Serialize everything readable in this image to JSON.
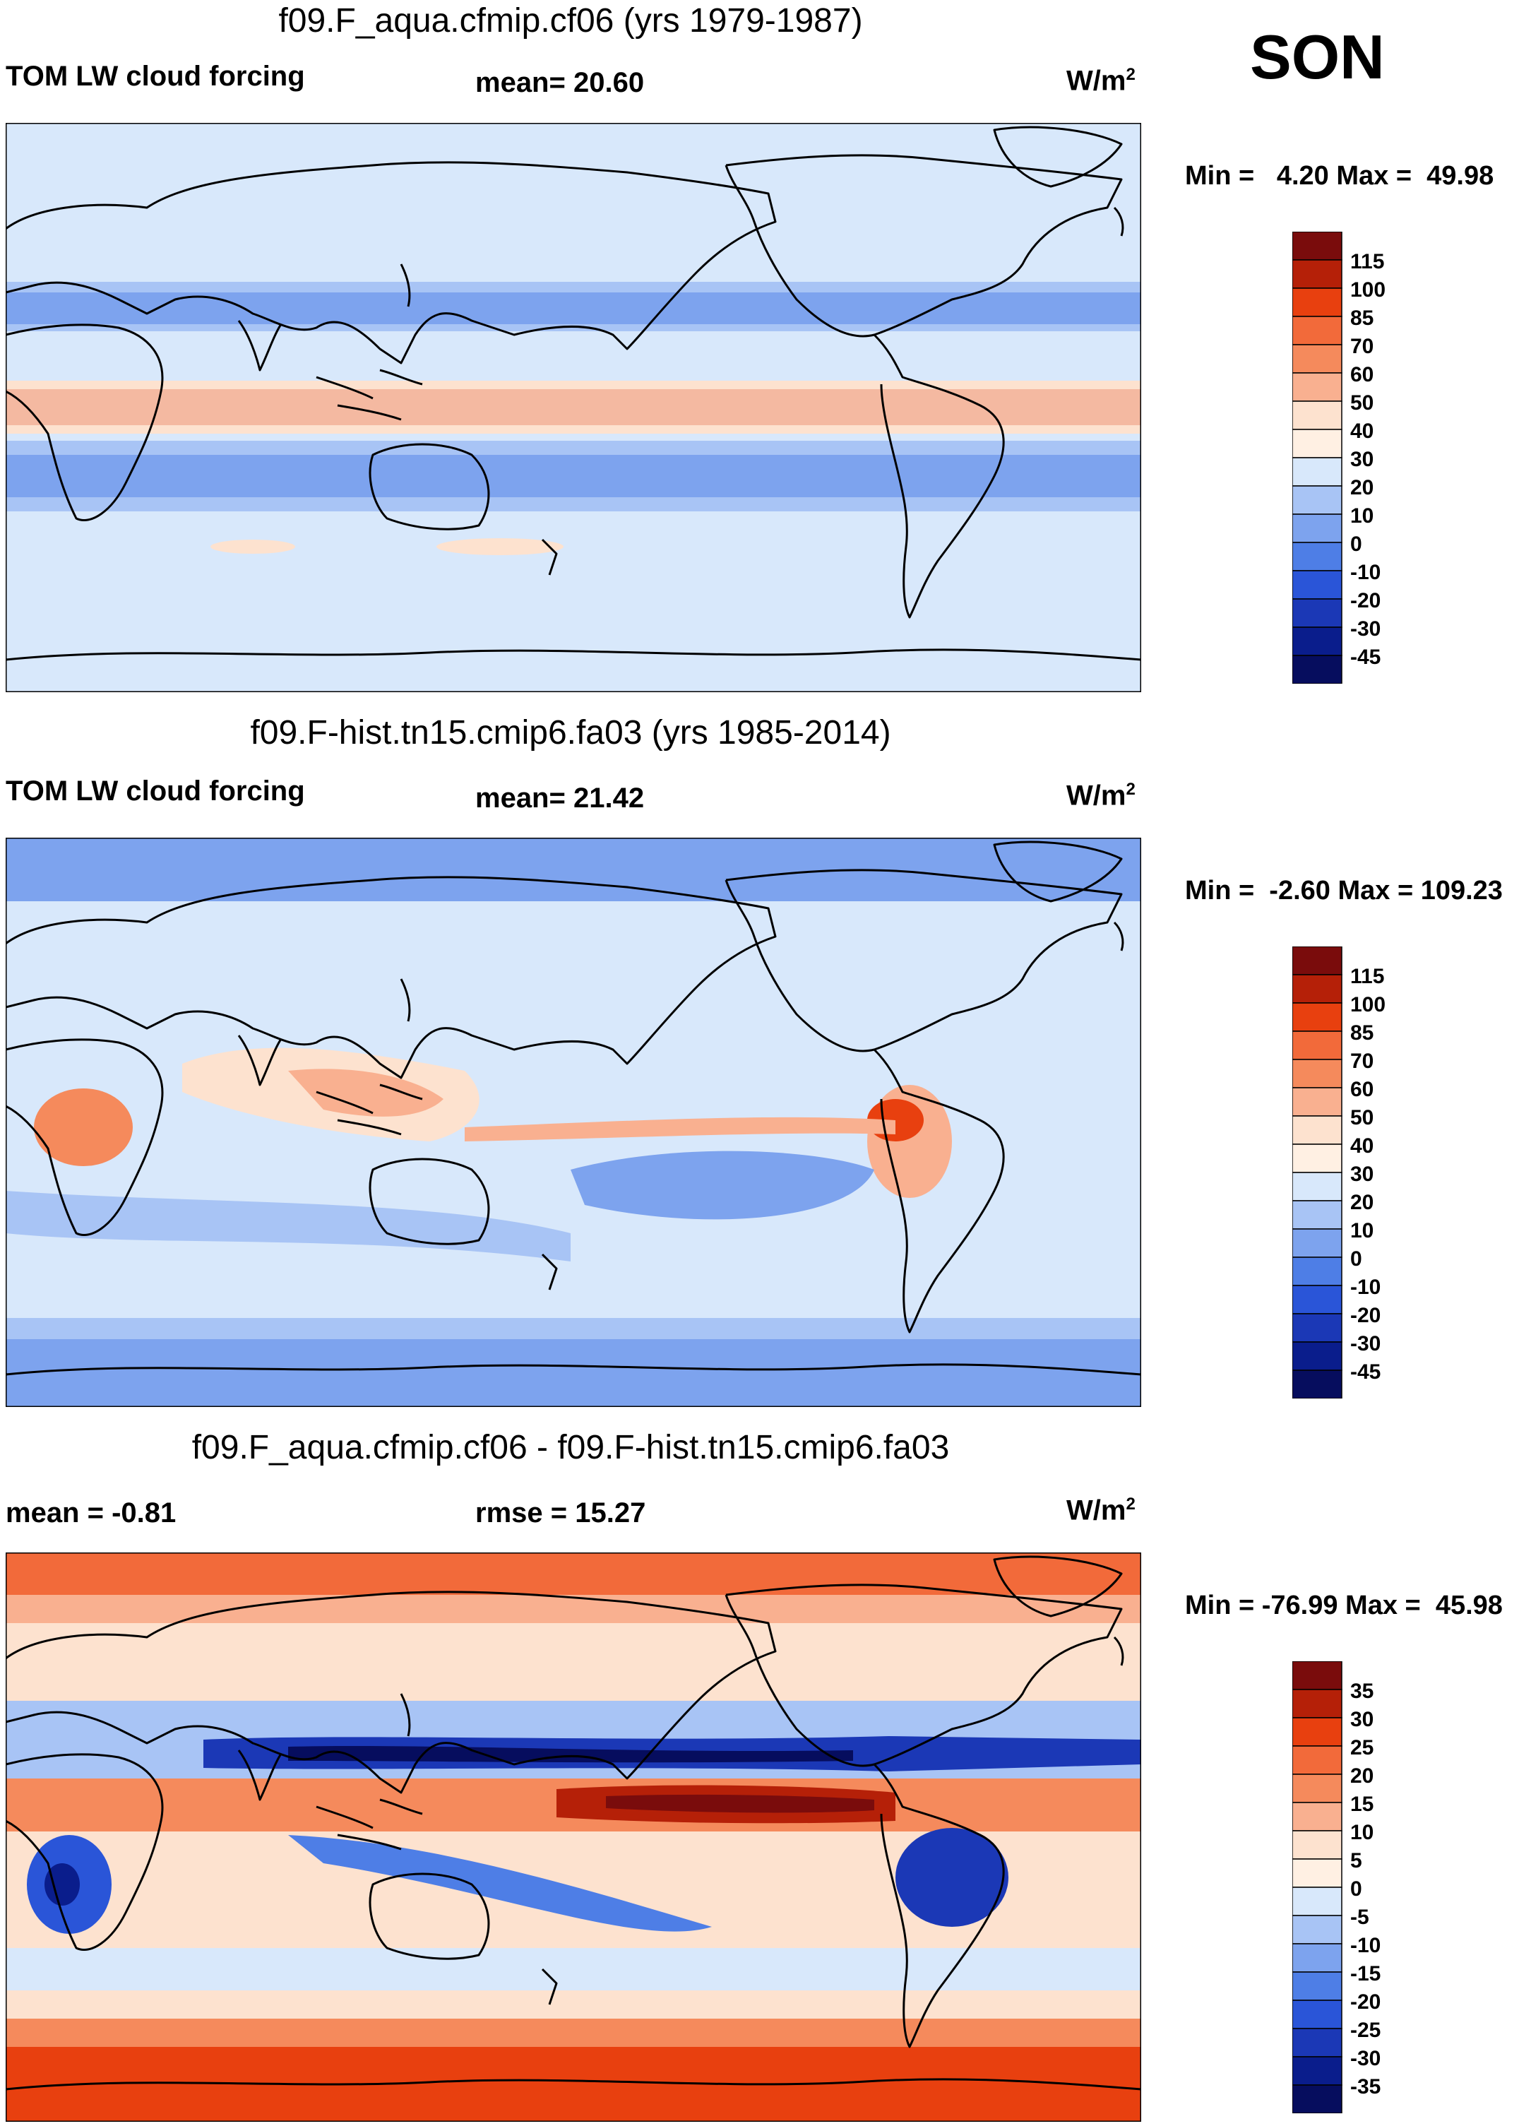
{
  "season": "SON",
  "units": "W/m",
  "units_sup": "2",
  "panels": [
    {
      "title": "f09.F_aqua.cfmip.cf06 (yrs 1979-1987)",
      "left_label": "TOM LW cloud forcing",
      "center_label": "mean=  20.60",
      "minmax": "Min =   4.20 Max =  49.98",
      "colorbar_labels": [
        "115",
        "100",
        "85",
        "70",
        "60",
        "50",
        "40",
        "30",
        "20",
        "10",
        "0",
        "-10",
        "-20",
        "-30",
        "-45"
      ],
      "colors": [
        "#7a0c0c",
        "#b52008",
        "#e8400f",
        "#f26a3a",
        "#f58a5c",
        "#f9b090",
        "#fde2cf",
        "#fff0e3",
        "#d8e8fb",
        "#a8c4f5",
        "#7da3ee",
        "#4e7ee6",
        "#2a55d8",
        "#1b38b6",
        "#0a1d8c",
        "#060d5e"
      ]
    },
    {
      "title": "f09.F-hist.tn15.cmip6.fa03 (yrs 1985-2014)",
      "left_label": "TOM LW cloud forcing",
      "center_label": "mean=  21.42",
      "minmax": "Min =  -2.60 Max = 109.23",
      "colorbar_labels": [
        "115",
        "100",
        "85",
        "70",
        "60",
        "50",
        "40",
        "30",
        "20",
        "10",
        "0",
        "-10",
        "-20",
        "-30",
        "-45"
      ],
      "colors": [
        "#7a0c0c",
        "#b52008",
        "#e8400f",
        "#f26a3a",
        "#f58a5c",
        "#f9b090",
        "#fde2cf",
        "#fff0e3",
        "#d8e8fb",
        "#a8c4f5",
        "#7da3ee",
        "#4e7ee6",
        "#2a55d8",
        "#1b38b6",
        "#0a1d8c",
        "#060d5e"
      ]
    },
    {
      "title": "f09.F_aqua.cfmip.cf06 - f09.F-hist.tn15.cmip6.fa03",
      "left_label": "mean =  -0.81",
      "center_label": "rmse =  15.27",
      "minmax": "Min = -76.99 Max =  45.98",
      "colorbar_labels": [
        "35",
        "30",
        "25",
        "20",
        "15",
        "10",
        "5",
        "0",
        "-5",
        "-10",
        "-15",
        "-20",
        "-25",
        "-30",
        "-35"
      ],
      "colors": [
        "#7a0c0c",
        "#b52008",
        "#e8400f",
        "#f26a3a",
        "#f58a5c",
        "#f9b090",
        "#fde2cf",
        "#fff0e3",
        "#d8e8fb",
        "#a8c4f5",
        "#7da3ee",
        "#4e7ee6",
        "#2a55d8",
        "#1b38b6",
        "#0a1d8c",
        "#060d5e"
      ]
    }
  ]
}
